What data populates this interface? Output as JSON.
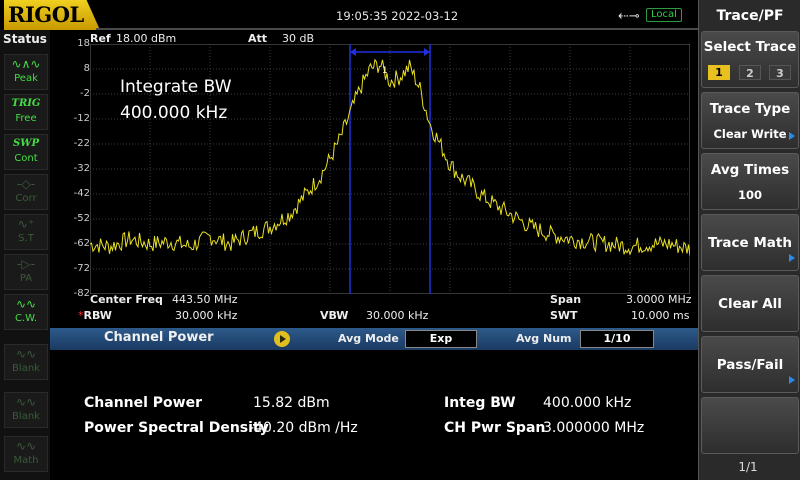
{
  "brand": "RIGOL",
  "clock": "19:05:35 2022-03-12",
  "connection": {
    "icon": "usb-icon",
    "label": "Local"
  },
  "status_panel": {
    "title": "Status",
    "items": [
      {
        "icon": "peak-icon",
        "label": "Peak",
        "state": "active"
      },
      {
        "icon_text": "TRIG",
        "label": "Free",
        "state": "active"
      },
      {
        "icon_text": "SWP",
        "label": "Cont",
        "state": "active"
      },
      {
        "icon": "corr-icon",
        "label": "Corr",
        "state": "dim"
      },
      {
        "icon": "st-icon",
        "label": "S.T",
        "state": "dim"
      },
      {
        "icon": "pa-icon",
        "label": "PA",
        "state": "dim"
      },
      {
        "icon": "cw-icon",
        "label": "C.W.",
        "state": "active"
      },
      {
        "icon": "blank-icon",
        "label": "Blank",
        "state": "dim"
      },
      {
        "icon": "blank-icon",
        "label": "Blank",
        "state": "dim"
      },
      {
        "icon": "math-icon",
        "label": "Math",
        "state": "dim"
      }
    ]
  },
  "plot": {
    "ref_label": "Ref",
    "ref_value": "18.00 dBm",
    "att_label": "Att",
    "att_value": "30 dB",
    "marker_label": "1",
    "integrate_title": "Integrate BW",
    "integrate_value": "400.000 kHz",
    "y_ticks": [
      "18",
      "8",
      "-2",
      "-12",
      "-22",
      "-32",
      "-42",
      "-52",
      "-62",
      "-72",
      "-82"
    ],
    "trace_color": "#e8e020",
    "band_color": "#2030e0"
  },
  "chart_data": {
    "type": "line",
    "ylim": [
      -82,
      18
    ],
    "ylabel": "",
    "x_center_mhz": 443.5,
    "x_span_mhz": 3.0,
    "xlim_mhz": [
      442.0,
      445.0
    ],
    "band_mhz": [
      443.3,
      443.7
    ],
    "series": [
      {
        "x": [
          442.0,
          442.1,
          442.2,
          442.3,
          442.4,
          442.5,
          442.6,
          442.7,
          442.8,
          442.9,
          443.0,
          443.05,
          443.1,
          443.15,
          443.2,
          443.25,
          443.3,
          443.35,
          443.4,
          443.45,
          443.5,
          443.55,
          443.6,
          443.65,
          443.7,
          443.75,
          443.8,
          443.85,
          443.9,
          443.95,
          444.0,
          444.1,
          444.2,
          444.3,
          444.4,
          444.5,
          444.6,
          444.7,
          444.8,
          444.9,
          445.0
        ],
        "y": [
          -62,
          -63,
          -60,
          -62,
          -61,
          -63,
          -59,
          -62,
          -58,
          -55,
          -50,
          -45,
          -40,
          -35,
          -28,
          -20,
          -10,
          0,
          8,
          10,
          3,
          5,
          9,
          0,
          -14,
          -22,
          -30,
          -35,
          -38,
          -42,
          -45,
          -50,
          -55,
          -58,
          -60,
          -61,
          -62,
          -63,
          -62,
          -62,
          -64
        ]
      }
    ]
  },
  "freq": {
    "center_label": "Center Freq",
    "center_value": "443.50 MHz",
    "rbw_mark": "*",
    "rbw_label": "RBW",
    "rbw_value": "30.000 kHz",
    "vbw_label": "VBW",
    "vbw_value": "30.000 kHz",
    "span_label": "Span",
    "span_value": "3.0000 MHz",
    "swt_label": "SWT",
    "swt_value": "10.000 ms"
  },
  "channel_power_bar": {
    "title": "Channel Power",
    "avg_mode_label": "Avg Mode",
    "avg_mode_value": "Exp",
    "avg_num_label": "Avg Num",
    "avg_num_value": "1/10"
  },
  "results": {
    "channel_power_label": "Channel Power",
    "channel_power_value": "15.82 dBm",
    "psd_label": "Power Spectral Density",
    "psd_value": "-40.20 dBm /Hz",
    "integ_bw_label": "Integ BW",
    "integ_bw_value": "400.000 kHz",
    "ch_pwr_span_label": "CH Pwr Span",
    "ch_pwr_span_value": "3.000000 MHz"
  },
  "menu": {
    "title": "Trace/PF",
    "select_trace_label": "Select Trace",
    "traces": [
      "1",
      "2",
      "3"
    ],
    "trace_type_label": "Trace Type",
    "trace_type_value": "Clear Write",
    "avg_times_label": "Avg Times",
    "avg_times_value": "100",
    "trace_math_label": "Trace Math",
    "clear_all_label": "Clear All",
    "pass_fail_label": "Pass/Fail",
    "page_indicator": "1/1"
  }
}
